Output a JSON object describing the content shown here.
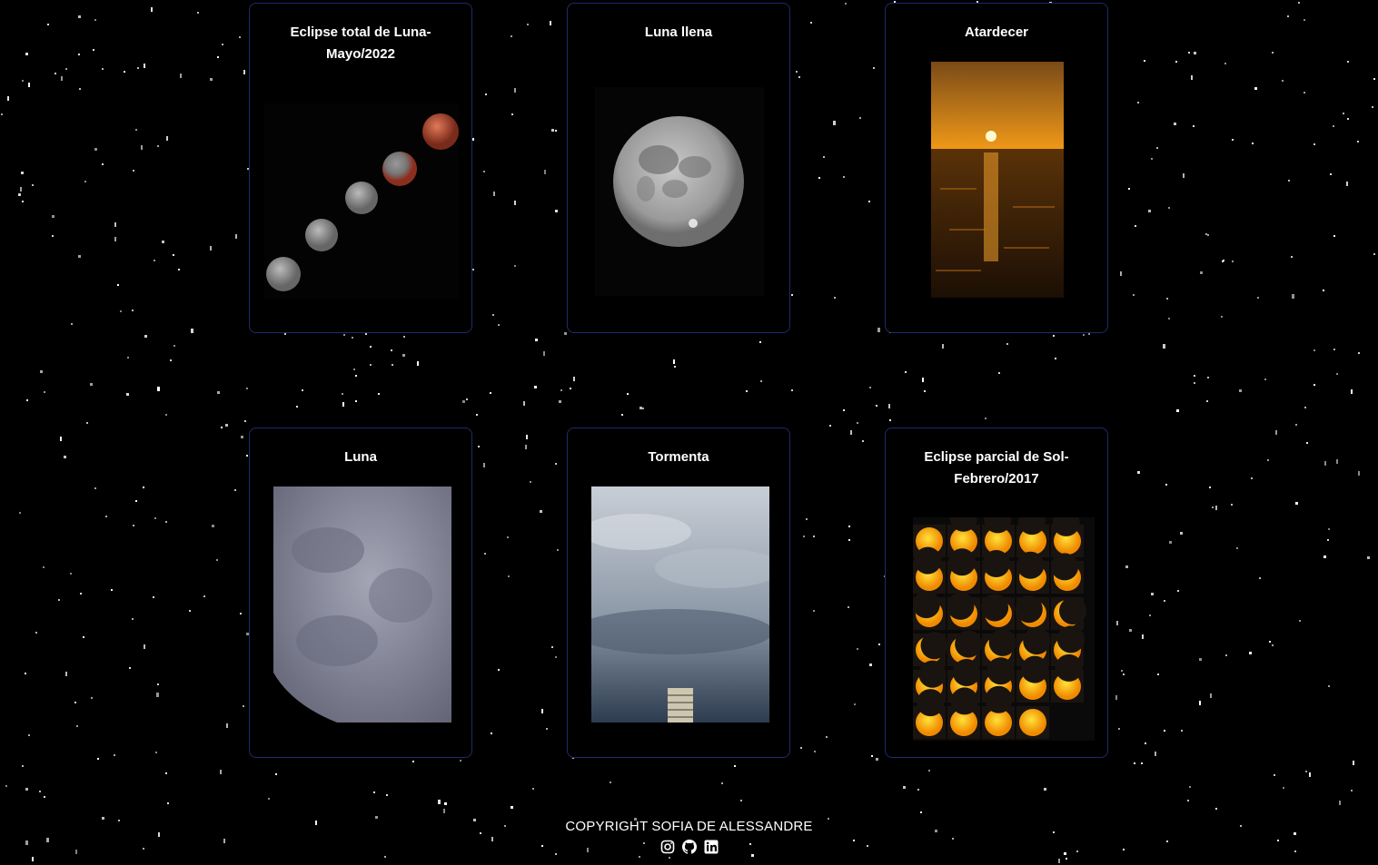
{
  "cards": [
    {
      "title": "Eclipse total de Luna-Mayo/2022",
      "image": "lunar-eclipse-sequence"
    },
    {
      "title": "Luna llena",
      "image": "full-moon"
    },
    {
      "title": "Atardecer",
      "image": "sunset-over-sea"
    },
    {
      "title": "Luna",
      "image": "moon-closeup"
    },
    {
      "title": "Tormenta",
      "image": "storm-clouds"
    },
    {
      "title": "Eclipse parcial de Sol-Febrero/2017",
      "image": "partial-solar-eclipse-grid"
    }
  ],
  "footer": {
    "copyright": "COPYRIGHT SOFIA DE ALESSANDRE",
    "socials": [
      "instagram-icon",
      "github-icon",
      "linkedin-icon"
    ]
  },
  "colors": {
    "background": "#000000",
    "card_border": "#1f2a6b",
    "text": "#ffffff"
  }
}
